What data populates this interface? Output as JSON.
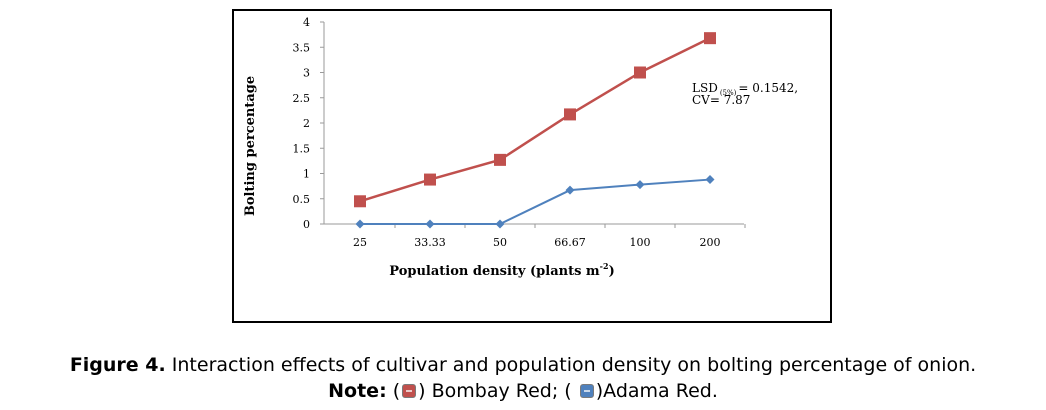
{
  "chart_data": {
    "type": "line",
    "categories": [
      "25",
      "33.33",
      "50",
      "66.67",
      "100",
      "200"
    ],
    "series": [
      {
        "name": "Bombay Red",
        "values": [
          0.45,
          0.88,
          1.27,
          2.17,
          3.0,
          3.68
        ],
        "color": "#c0504d",
        "marker": "square"
      },
      {
        "name": "Adama Red",
        "values": [
          0,
          0,
          0,
          0.67,
          0.78,
          0.88
        ],
        "color": "#4f81bd",
        "marker": "diamond"
      }
    ],
    "ylabel": "Bolting percentage",
    "xlabel_main": "Population density (plants m",
    "xlabel_sup": "-2",
    "xlabel_end": ")",
    "ylim": [
      0,
      4
    ],
    "yticks": [
      "0",
      "0.5",
      "1",
      "1.5",
      "2",
      "2.5",
      "3",
      "3.5",
      "4"
    ],
    "annotation_line1_a": "LSD",
    "annotation_line1_sub": "(5%)",
    "annotation_line1_b": "= 0.1542,",
    "annotation_line2": "CV= 7.87"
  },
  "caption": {
    "figure_label": "Figure 4.",
    "figure_text": " Interaction effects of cultivar and population density on bolting percentage of onion.",
    "note_label": "Note:",
    "note_open1": "(",
    "note_item1": ") Bombay Red; (",
    "note_item2": ")Adama Red."
  }
}
